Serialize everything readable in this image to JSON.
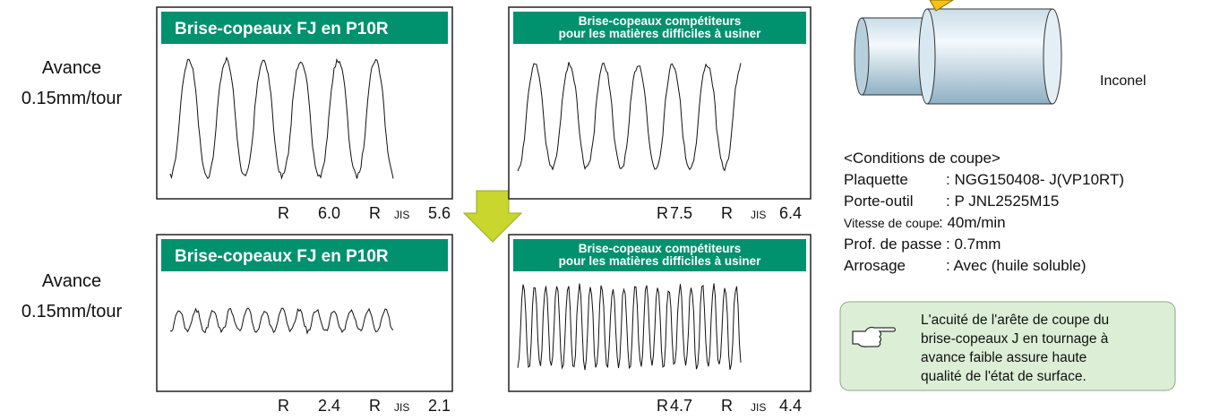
{
  "feed_labels": [
    {
      "line1": "Avance",
      "line2": "0.15mm/tour"
    },
    {
      "line1": "Avance",
      "line2": "0.15mm/tour"
    }
  ],
  "panels": [
    {
      "header": [
        "Brise-copeaux FJ en    P10R"
      ],
      "roughness": [
        "R",
        "6.0",
        "R",
        "JIS",
        "5.6"
      ]
    },
    {
      "header": [
        "Brise-copeaux compétiteurs",
        "pour les matières difficiles à usiner"
      ],
      "roughness": [
        "R",
        "7.5",
        "R",
        "JIS",
        "6.4"
      ]
    },
    {
      "header": [
        "Brise-copeaux FJ en    P10R"
      ],
      "roughness": [
        "R",
        "2.4",
        "R",
        "JIS",
        "2.1"
      ]
    },
    {
      "header": [
        "Brise-copeaux compétiteurs",
        "pour les matières difficiles à usiner"
      ],
      "roughness": [
        "R",
        "4.7",
        "R",
        "JIS",
        "4.4"
      ]
    }
  ],
  "material": "Inconel",
  "conditions": {
    "title": "<Conditions de coupe>",
    "rows": [
      [
        "Plaquette",
        ":   NGG150408-  J(VP10RT)"
      ],
      [
        "Porte-outil",
        ": P   JNL2525M15"
      ],
      [
        "Vitesse de coupe",
        ": 40m/min"
      ],
      [
        "Prof. de passe",
        ": 0.7mm"
      ],
      [
        "Arrosage",
        ": Avec (huile soluble)"
      ]
    ]
  },
  "note": [
    "L'acuité de l'arête de coupe du",
    "brise-copeaux   J en tournage à",
    "avance faible assure haute",
    "qualité de l'état de surface."
  ]
}
